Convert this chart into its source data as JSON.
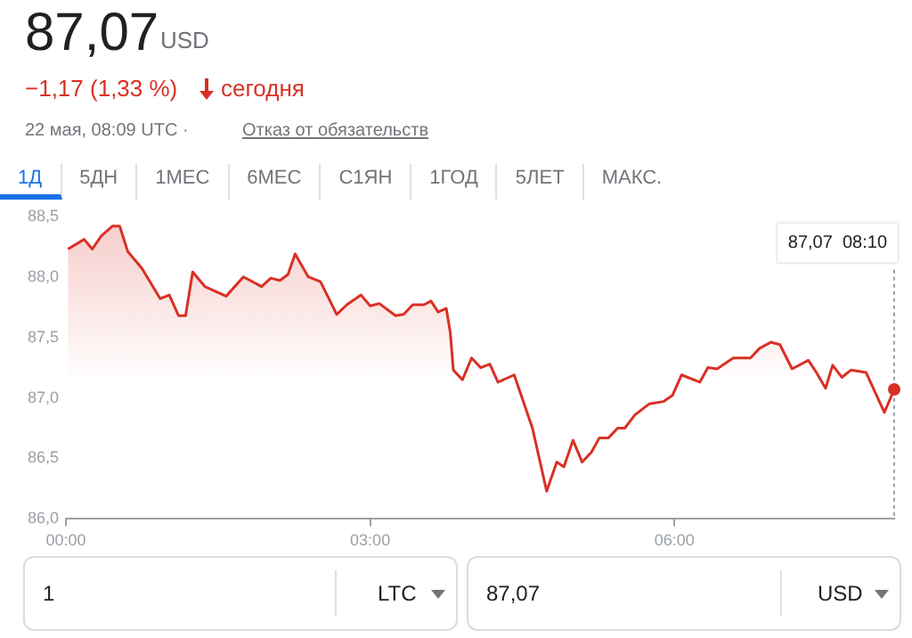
{
  "chart_data": {
    "type": "area",
    "title": "87,07",
    "subtitle": "−1,17 (1,33 %)",
    "annotations": [
      "USD",
      "сегодня",
      "22 мая, 08:09 UTC ·",
      "Отказ от обязательств",
      "1Д",
      "5ДН",
      "1МЕС",
      "6МЕС",
      "С1ЯН",
      "1ГОД",
      "5ЛЕТ",
      "МАКС.",
      "1",
      "LTC",
      "87,07",
      "USD",
      "87,07  08:10"
    ],
    "x": [
      0.02,
      0.18,
      0.26,
      0.35,
      0.46,
      0.53,
      0.61,
      0.75,
      0.93,
      1.02,
      1.11,
      1.18,
      1.25,
      1.37,
      1.58,
      1.75,
      1.93,
      2.02,
      2.11,
      2.19,
      2.26,
      2.39,
      2.51,
      2.67,
      2.77,
      2.91,
      3.0,
      3.09,
      3.25,
      3.33,
      3.42,
      3.53,
      3.6,
      3.67,
      3.75,
      3.79,
      3.82,
      3.91,
      4.0,
      4.09,
      4.18,
      4.26,
      4.42,
      4.6,
      4.74,
      4.84,
      4.91,
      5.0,
      5.09,
      5.18,
      5.26,
      5.35,
      5.44,
      5.51,
      5.61,
      5.75,
      5.89,
      5.98,
      6.07,
      6.25,
      6.33,
      6.42,
      6.58,
      6.75,
      6.84,
      6.95,
      7.04,
      7.16,
      7.32,
      7.4,
      7.49,
      7.56,
      7.65,
      7.74,
      7.89,
      8.07,
      8.1667
    ],
    "series": [
      {
        "color": "#d93025",
        "values": [
          88.23,
          88.31,
          88.23,
          88.34,
          88.42,
          88.42,
          88.21,
          88.07,
          87.82,
          87.85,
          87.68,
          87.68,
          88.04,
          87.92,
          87.84,
          88.0,
          87.92,
          87.99,
          87.97,
          88.02,
          88.19,
          88.0,
          87.96,
          87.69,
          87.77,
          87.85,
          87.76,
          87.78,
          87.68,
          87.69,
          87.77,
          87.77,
          87.8,
          87.71,
          87.74,
          87.54,
          87.23,
          87.15,
          87.33,
          87.25,
          87.28,
          87.13,
          87.19,
          86.75,
          86.23,
          86.47,
          86.43,
          86.65,
          86.47,
          86.55,
          86.67,
          86.67,
          86.75,
          86.75,
          86.86,
          86.95,
          86.97,
          87.02,
          87.19,
          87.13,
          87.25,
          87.24,
          87.33,
          87.33,
          87.41,
          87.46,
          87.44,
          87.24,
          87.31,
          87.21,
          87.08,
          87.27,
          87.17,
          87.23,
          87.21,
          86.88,
          87.07
        ]
      }
    ],
    "xlim": [
      0,
      8.1667
    ],
    "xticks": [
      {
        "value": 0,
        "label": "00:00"
      },
      {
        "value": 3,
        "label": "03:00"
      },
      {
        "value": 6,
        "label": "06:00"
      }
    ],
    "ylim": [
      86,
      88.5
    ],
    "yticks": [
      {
        "value": 86,
        "label": "86,0"
      },
      {
        "value": 86.5,
        "label": "86,5"
      },
      {
        "value": 87,
        "label": "87,0"
      },
      {
        "value": 87.5,
        "label": "87,5"
      },
      {
        "value": 88,
        "label": "88,0"
      },
      {
        "value": 88.5,
        "label": "88,5"
      }
    ],
    "ref_lines": [
      {
        "axis": "x",
        "value": 8.1667,
        "line_style": "dotted",
        "color": "#9aa0a6"
      }
    ],
    "grid": false,
    "legend": false,
    "marker": "none",
    "line_style": "solid"
  }
}
